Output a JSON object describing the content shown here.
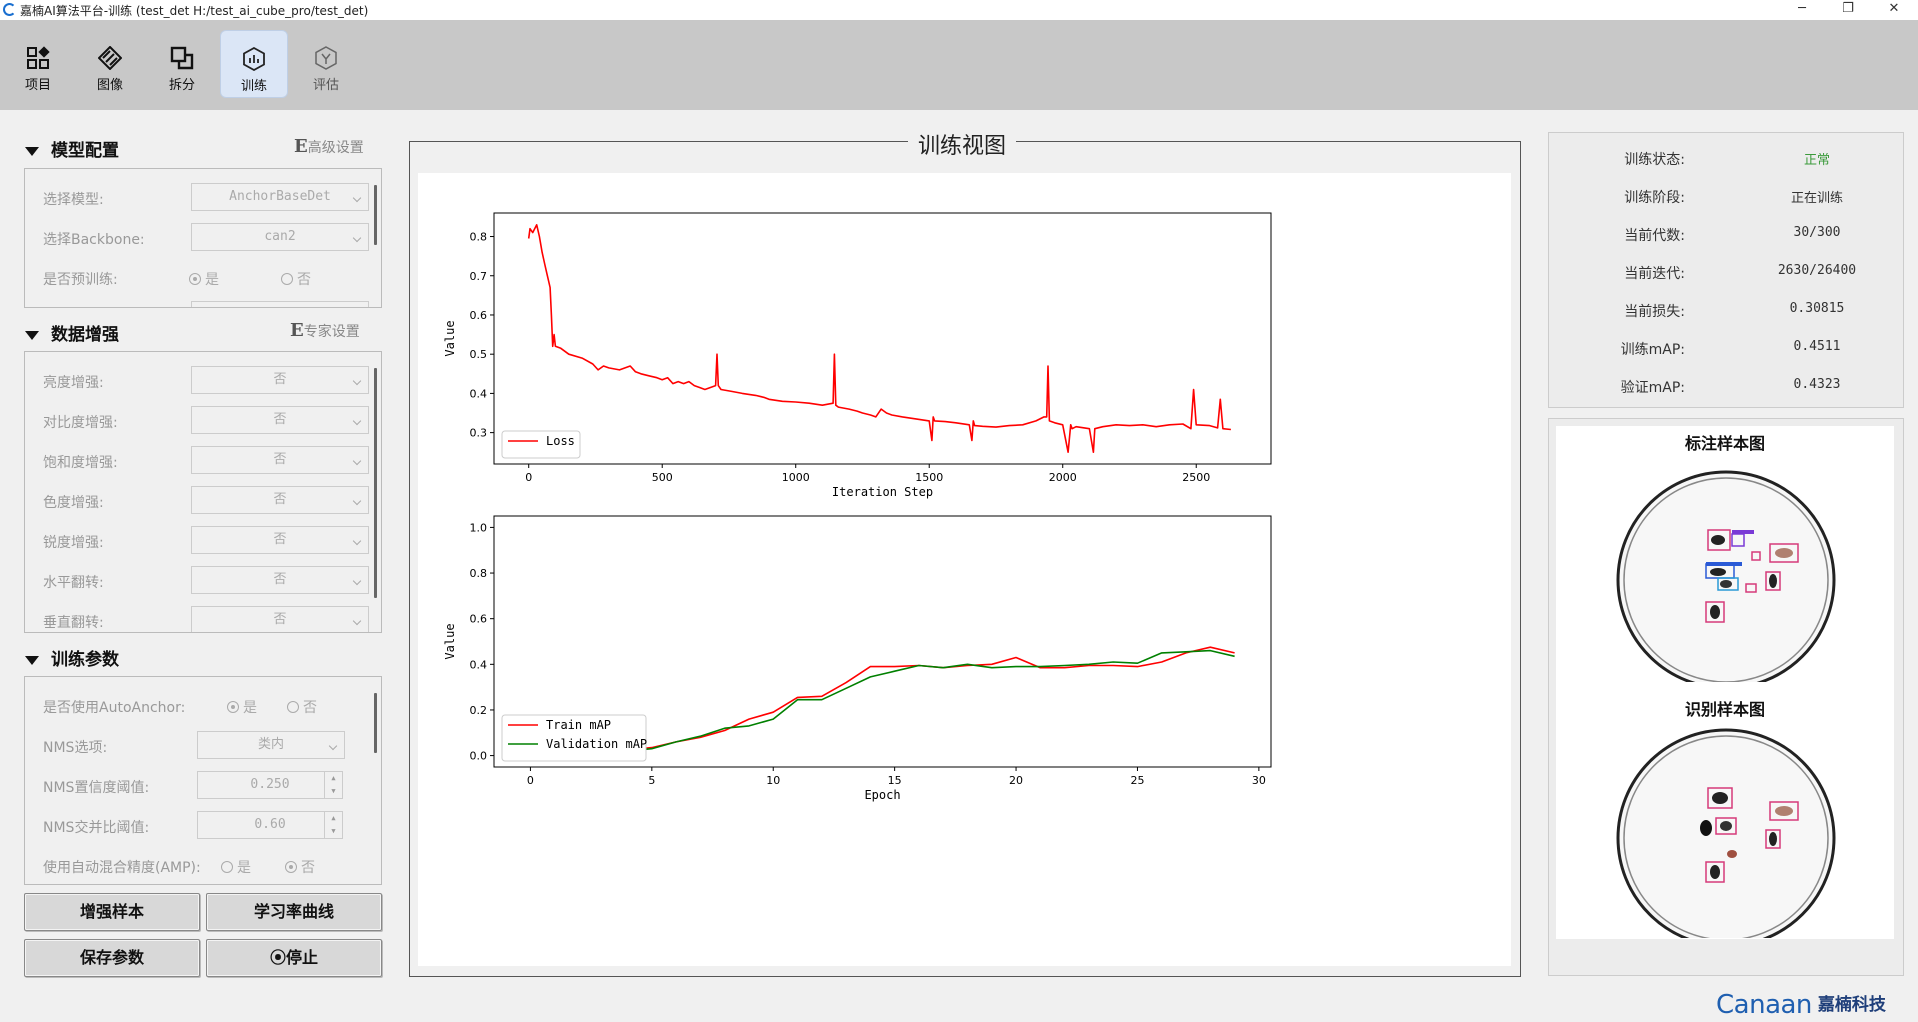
{
  "window": {
    "title": "嘉楠AI算法平台-训练 (test_det  H:/test_ai_cube_pro/test_det)",
    "controls": {
      "minimize": "─",
      "maximize": "❐",
      "close": "✕"
    }
  },
  "toolbar": {
    "items": [
      {
        "label": "项目",
        "icon": "project-icon"
      },
      {
        "label": "图像",
        "icon": "image-icon"
      },
      {
        "label": "拆分",
        "icon": "split-icon"
      },
      {
        "label": "训练",
        "icon": "train-icon"
      },
      {
        "label": "评估",
        "icon": "evaluate-icon"
      }
    ],
    "active": "训练"
  },
  "model_config": {
    "header": "模型配置",
    "advanced_label": "高级设置",
    "advanced_glyph": "E",
    "model_label": "选择模型:",
    "model_value": "AnchorBaseDet",
    "backbone_label": "选择Backbone:",
    "backbone_value": "can2",
    "pretrain_label": "是否预训练:",
    "yes": "是",
    "no": "否",
    "pretrain_selected": "是"
  },
  "augmentation": {
    "header": "数据增强",
    "expert_label": "专家设置",
    "expert_glyph": "E",
    "items": [
      {
        "label": "亮度增强:",
        "value": "否"
      },
      {
        "label": "对比度增强:",
        "value": "否"
      },
      {
        "label": "饱和度增强:",
        "value": "否"
      },
      {
        "label": "色度增强:",
        "value": "否"
      },
      {
        "label": "锐度增强:",
        "value": "否"
      },
      {
        "label": "水平翻转:",
        "value": "否"
      },
      {
        "label": "垂直翻转:",
        "value": "否"
      }
    ]
  },
  "train_params": {
    "header": "训练参数",
    "autoanchor_label": "是否使用AutoAnchor:",
    "autoanchor_selected": "是",
    "yes": "是",
    "no": "否",
    "nms_label": "NMS选项:",
    "nms_value": "类内",
    "conf_label": "NMS置信度阈值:",
    "conf_value": "0.250",
    "iou_label": "NMS交并比阈值:",
    "iou_value": "0.60",
    "amp_label": "使用自动混合精度(AMP):",
    "amp_selected": "否",
    "amp_yes": "是",
    "amp_no": "否"
  },
  "buttons": {
    "augment_samples": "增强样本",
    "lr_curve": "学习率曲线",
    "save_params": "保存参数",
    "stop": "停止",
    "stop_icon": "⦿"
  },
  "train_view": {
    "title": "训练视图"
  },
  "status": {
    "rows": [
      {
        "key": "训练状态:",
        "value": "正常"
      },
      {
        "key": "训练阶段:",
        "value": "正在训练"
      },
      {
        "key": "当前代数:",
        "value": "30/300"
      },
      {
        "key": "当前迭代:",
        "value": "2630/26400"
      },
      {
        "key": "当前损失:",
        "value": "0.30815"
      },
      {
        "key": "训练mAP:",
        "value": "0.4511"
      },
      {
        "key": "验证mAP:",
        "value": "0.4323"
      }
    ],
    "ok_color": "#3a9a3a"
  },
  "samples": {
    "annotated_title": "标注样本图",
    "recognized_title": "识别样本图"
  },
  "brand": {
    "en": "Canaan",
    "cn": "嘉楠科技"
  },
  "chart_data": [
    {
      "type": "line",
      "xlabel": "Iteration Step",
      "ylabel": "Value",
      "xlim": [
        -130,
        2780
      ],
      "ylim": [
        0.22,
        0.86
      ],
      "xticks": [
        0,
        500,
        1000,
        1500,
        2000,
        2500
      ],
      "yticks": [
        0.3,
        0.4,
        0.5,
        0.6,
        0.7,
        0.8
      ],
      "legend_position": "lower-left",
      "grid": false,
      "series": [
        {
          "name": "Loss",
          "color": "#ff0000",
          "x": [
            0,
            5,
            15,
            30,
            40,
            50,
            60,
            70,
            80,
            85,
            90,
            95,
            100,
            120,
            150,
            200,
            240,
            260,
            280,
            300,
            340,
            380,
            400,
            420,
            450,
            480,
            500,
            520,
            540,
            560,
            580,
            600,
            620,
            640,
            660,
            700,
            705,
            710,
            720,
            760,
            800,
            850,
            880,
            900,
            950,
            1000,
            1050,
            1100,
            1140,
            1145,
            1150,
            1160,
            1200,
            1230,
            1250,
            1280,
            1300,
            1320,
            1340,
            1360,
            1400,
            1450,
            1500,
            1510,
            1515,
            1520,
            1560,
            1600,
            1650,
            1660,
            1665,
            1670,
            1700,
            1750,
            1800,
            1850,
            1900,
            1930,
            1940,
            1945,
            1950,
            1970,
            2000,
            2020,
            2030,
            2035,
            2050,
            2100,
            2115,
            2120,
            2150,
            2200,
            2250,
            2300,
            2350,
            2400,
            2450,
            2480,
            2490,
            2500,
            2550,
            2580,
            2590,
            2600,
            2630
          ],
          "y": [
            0.795,
            0.82,
            0.81,
            0.83,
            0.8,
            0.76,
            0.73,
            0.7,
            0.67,
            0.6,
            0.52,
            0.55,
            0.52,
            0.515,
            0.5,
            0.49,
            0.475,
            0.46,
            0.47,
            0.465,
            0.46,
            0.47,
            0.455,
            0.45,
            0.445,
            0.44,
            0.435,
            0.44,
            0.425,
            0.43,
            0.425,
            0.43,
            0.42,
            0.415,
            0.41,
            0.42,
            0.5,
            0.42,
            0.41,
            0.405,
            0.4,
            0.395,
            0.39,
            0.385,
            0.38,
            0.378,
            0.375,
            0.37,
            0.375,
            0.5,
            0.37,
            0.365,
            0.36,
            0.355,
            0.35,
            0.345,
            0.34,
            0.36,
            0.35,
            0.345,
            0.34,
            0.335,
            0.33,
            0.28,
            0.34,
            0.33,
            0.328,
            0.325,
            0.32,
            0.28,
            0.33,
            0.318,
            0.316,
            0.314,
            0.318,
            0.32,
            0.33,
            0.34,
            0.34,
            0.47,
            0.33,
            0.325,
            0.32,
            0.25,
            0.32,
            0.31,
            0.315,
            0.31,
            0.25,
            0.31,
            0.315,
            0.32,
            0.318,
            0.32,
            0.315,
            0.32,
            0.322,
            0.31,
            0.41,
            0.32,
            0.318,
            0.312,
            0.385,
            0.31,
            0.308
          ]
        }
      ]
    },
    {
      "type": "line",
      "xlabel": "Epoch",
      "ylabel": "Value",
      "xlim": [
        -1.5,
        30.5
      ],
      "ylim": [
        -0.05,
        1.05
      ],
      "xticks": [
        0,
        5,
        10,
        15,
        20,
        25,
        30
      ],
      "yticks": [
        0.0,
        0.2,
        0.4,
        0.6,
        0.8,
        1.0
      ],
      "legend_position": "lower-left",
      "grid": false,
      "series": [
        {
          "name": "Train mAP",
          "color": "#ff0000",
          "x": [
            0,
            1,
            2,
            3,
            4,
            5,
            6,
            7,
            8,
            9,
            10,
            11,
            12,
            13,
            14,
            15,
            16,
            17,
            18,
            19,
            20,
            21,
            22,
            23,
            24,
            25,
            26,
            27,
            28,
            29
          ],
          "y": [
            0.01,
            0.02,
            0.015,
            0.02,
            0.025,
            0.035,
            0.06,
            0.08,
            0.11,
            0.16,
            0.19,
            0.255,
            0.26,
            0.32,
            0.39,
            0.39,
            0.395,
            0.385,
            0.395,
            0.4,
            0.43,
            0.385,
            0.385,
            0.395,
            0.395,
            0.39,
            0.41,
            0.45,
            0.475,
            0.45
          ]
        },
        {
          "name": "Validation mAP",
          "color": "#008000",
          "x": [
            0,
            1,
            2,
            3,
            4,
            5,
            6,
            7,
            8,
            9,
            10,
            11,
            12,
            13,
            14,
            15,
            16,
            17,
            18,
            19,
            20,
            21,
            22,
            23,
            24,
            25,
            26,
            27,
            28,
            29
          ],
          "y": [
            0.01,
            0.015,
            0.01,
            0.015,
            0.02,
            0.03,
            0.06,
            0.085,
            0.12,
            0.13,
            0.16,
            0.245,
            0.245,
            0.295,
            0.345,
            0.37,
            0.395,
            0.385,
            0.4,
            0.385,
            0.39,
            0.39,
            0.395,
            0.4,
            0.41,
            0.405,
            0.45,
            0.455,
            0.46,
            0.435
          ]
        }
      ]
    }
  ]
}
